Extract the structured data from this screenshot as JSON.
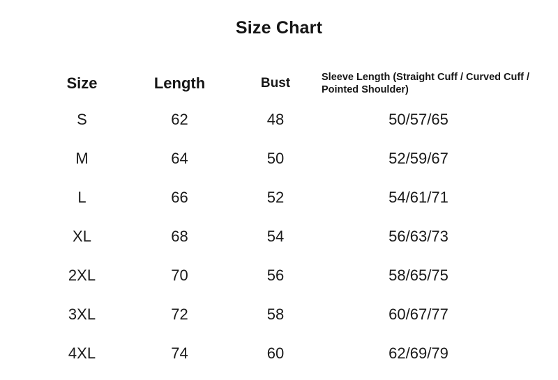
{
  "title": "Size Chart",
  "colors": {
    "background": "#ffffff",
    "text": "#1b1b1b",
    "heading": "#141414"
  },
  "table": {
    "headers": [
      {
        "label": "Size"
      },
      {
        "label": "Length"
      },
      {
        "label": "Bust"
      },
      {
        "label": "Sleeve Length (Straight Cuff / Curved Cuff / Pointed Shoulder)"
      }
    ],
    "rows": [
      {
        "size": "S",
        "length": "62",
        "bust": "48",
        "sleeve": "50/57/65"
      },
      {
        "size": "M",
        "length": "64",
        "bust": "50",
        "sleeve": "52/59/67"
      },
      {
        "size": "L",
        "length": "66",
        "bust": "52",
        "sleeve": "54/61/71"
      },
      {
        "size": "XL",
        "length": "68",
        "bust": "54",
        "sleeve": "56/63/73"
      },
      {
        "size": "2XL",
        "length": "70",
        "bust": "56",
        "sleeve": "58/65/75"
      },
      {
        "size": "3XL",
        "length": "72",
        "bust": "58",
        "sleeve": "60/67/77"
      },
      {
        "size": "4XL",
        "length": "74",
        "bust": "60",
        "sleeve": "62/69/79"
      }
    ]
  },
  "chart_data": {
    "type": "table",
    "title": "Size Chart",
    "columns": [
      "Size",
      "Length",
      "Bust",
      "Sleeve Length (Straight Cuff / Curved Cuff / Pointed Shoulder)"
    ],
    "rows": [
      [
        "S",
        62,
        48,
        "50/57/65"
      ],
      [
        "M",
        64,
        50,
        "52/59/67"
      ],
      [
        "L",
        66,
        52,
        "54/61/71"
      ],
      [
        "XL",
        68,
        54,
        "56/63/73"
      ],
      [
        "2XL",
        70,
        56,
        "58/65/75"
      ],
      [
        "3XL",
        72,
        58,
        "60/67/77"
      ],
      [
        "4XL",
        74,
        60,
        "62/69/79"
      ]
    ]
  }
}
